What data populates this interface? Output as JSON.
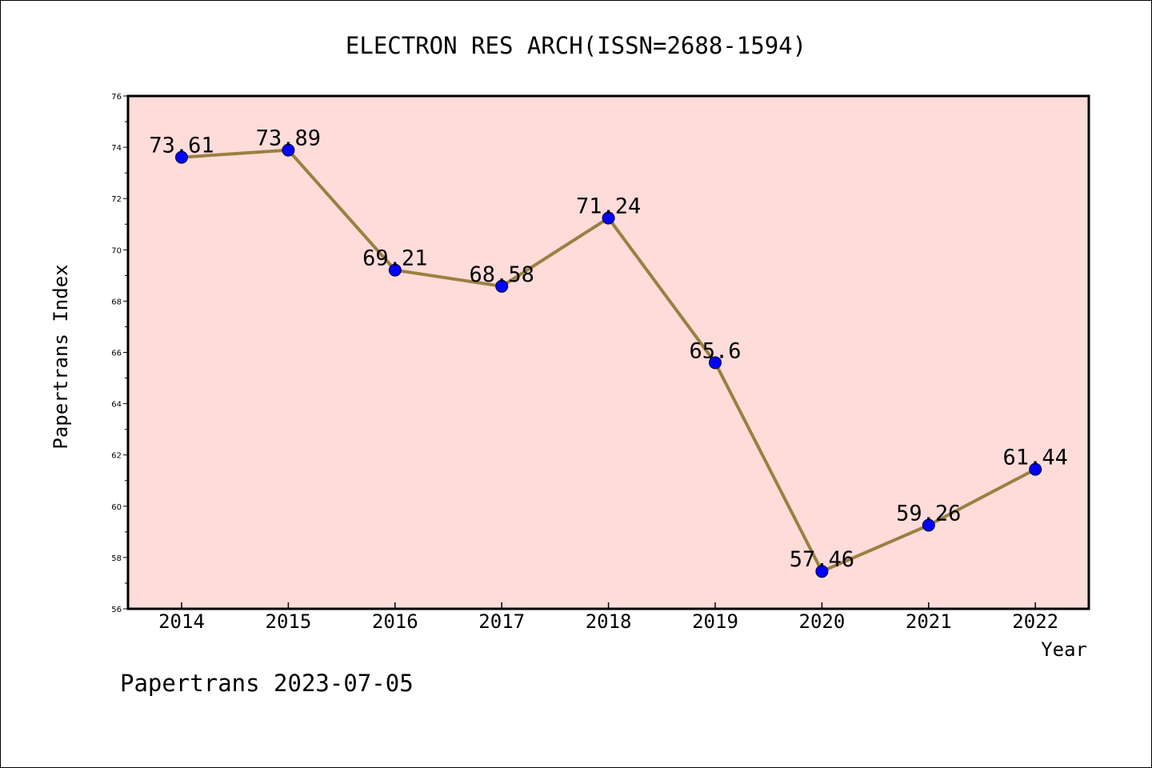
{
  "chart_data": {
    "type": "line",
    "title": "ELECTRON RES ARCH(ISSN=2688-1594)",
    "xlabel": "Year",
    "ylabel": "Papertrans Index",
    "ylim": [
      56,
      76
    ],
    "y_ticks": [
      56,
      58,
      60,
      62,
      64,
      66,
      68,
      70,
      72,
      74,
      76
    ],
    "categories": [
      "2014",
      "2015",
      "2016",
      "2017",
      "2018",
      "2019",
      "2020",
      "2021",
      "2022"
    ],
    "series": [
      {
        "values": [
          73.61,
          73.89,
          69.21,
          68.58,
          71.24,
          65.6,
          57.46,
          59.26,
          61.44
        ],
        "data_labels": [
          "73.61",
          "73.89",
          "69.21",
          "68.58",
          "71.24",
          "65.6",
          "57.46",
          "59.26",
          "61.44"
        ],
        "line_color": "#9a8040",
        "marker_color": "#0000ff"
      }
    ],
    "plot_background": "#fddcda",
    "grid": false,
    "legend": "none"
  },
  "footer": {
    "note": "Papertrans 2023-07-05"
  }
}
